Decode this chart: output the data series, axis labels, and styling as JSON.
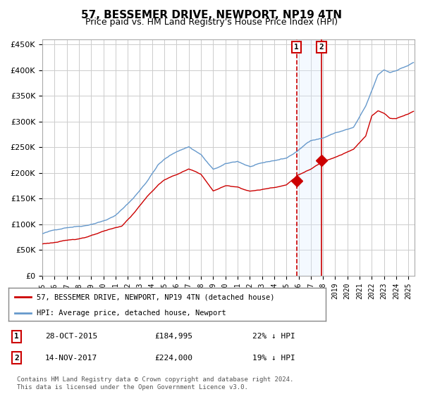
{
  "title": "57, BESSEMER DRIVE, NEWPORT, NP19 4TN",
  "subtitle": "Price paid vs. HM Land Registry's House Price Index (HPI)",
  "ylim": [
    0,
    460000
  ],
  "yticks": [
    0,
    50000,
    100000,
    150000,
    200000,
    250000,
    300000,
    350000,
    400000,
    450000
  ],
  "xlim_start": 1995.0,
  "xlim_end": 2025.5,
  "sale1_date": 2015.83,
  "sale1_price": 184995,
  "sale1_label": "1",
  "sale1_text": "28-OCT-2015",
  "sale1_price_text": "£184,995",
  "sale1_hpi_text": "22% ↓ HPI",
  "sale2_date": 2017.87,
  "sale2_price": 224000,
  "sale2_label": "2",
  "sale2_text": "14-NOV-2017",
  "sale2_price_text": "£224,000",
  "sale2_hpi_text": "19% ↓ HPI",
  "hpi_color": "#6699cc",
  "price_color": "#cc0000",
  "background_color": "#ffffff",
  "grid_color": "#cccccc",
  "shade_color": "#ddeeff",
  "footer": "Contains HM Land Registry data © Crown copyright and database right 2024.\nThis data is licensed under the Open Government Licence v3.0.",
  "title_fontsize": 11,
  "subtitle_fontsize": 9,
  "legend_label_price": "57, BESSEMER DRIVE, NEWPORT, NP19 4TN (detached house)",
  "legend_label_hpi": "HPI: Average price, detached house, Newport"
}
